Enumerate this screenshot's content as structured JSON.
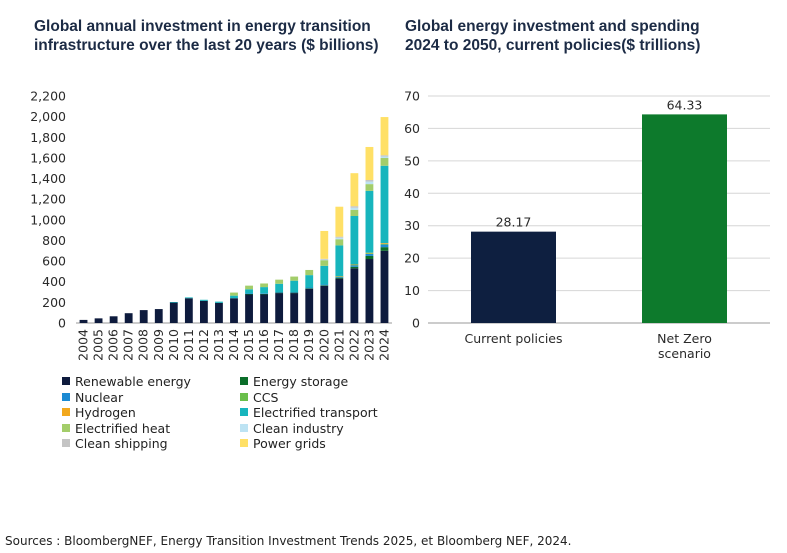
{
  "footer": {
    "sources": "Sources : BloombergNEF, Energy Transition Investment Trends 2025, et Bloomberg NEF, 2024."
  },
  "chart_data": [
    {
      "type": "bar",
      "stacked": true,
      "title": "Global annual investment in energy transition\ninfrastructure over the last 20 years ($ billions)",
      "xlabel": "",
      "ylabel": "",
      "ylim": [
        0,
        2200
      ],
      "yticks": [
        "0",
        "200",
        "400",
        "600",
        "800",
        "1,000",
        "1,200",
        "1,400",
        "1,600",
        "1,800",
        "2,000",
        "2,200"
      ],
      "categories": [
        "2004",
        "2005",
        "2006",
        "2007",
        "2008",
        "2009",
        "2010",
        "2011",
        "2012",
        "2013",
        "2014",
        "2015",
        "2016",
        "2017",
        "2018",
        "2019",
        "2020",
        "2021",
        "2022",
        "2023",
        "2024"
      ],
      "legend_position": "bottom",
      "series": [
        {
          "name": "Renewable energy",
          "color": "#0e1b3d",
          "values": [
            30,
            45,
            65,
            95,
            125,
            135,
            200,
            240,
            215,
            195,
            240,
            280,
            280,
            290,
            290,
            330,
            360,
            430,
            530,
            620,
            700
          ]
        },
        {
          "name": "Energy storage",
          "color": "#0b6e2a",
          "values": [
            0,
            0,
            0,
            0,
            0,
            0,
            0,
            0,
            0,
            0,
            0,
            2,
            3,
            5,
            5,
            6,
            6,
            9,
            15,
            30,
            35
          ]
        },
        {
          "name": "Nuclear",
          "color": "#1b8ad3",
          "values": [
            0,
            0,
            0,
            0,
            0,
            0,
            0,
            0,
            0,
            0,
            0,
            5,
            5,
            5,
            5,
            8,
            8,
            10,
            15,
            20,
            25
          ]
        },
        {
          "name": "CCS",
          "color": "#6abf4b",
          "values": [
            0,
            0,
            0,
            0,
            0,
            0,
            0,
            0,
            0,
            0,
            0,
            0,
            0,
            0,
            0,
            0,
            0,
            2,
            5,
            5,
            6
          ]
        },
        {
          "name": "Hydrogen",
          "color": "#f2a81d",
          "values": [
            0,
            0,
            0,
            0,
            0,
            0,
            0,
            0,
            0,
            0,
            0,
            0,
            0,
            0,
            0,
            0,
            0,
            1,
            2,
            6,
            8
          ]
        },
        {
          "name": "Electrified transport",
          "color": "#17b5bd",
          "values": [
            0,
            0,
            0,
            0,
            0,
            0,
            3,
            8,
            10,
            12,
            25,
            40,
            60,
            80,
            110,
            120,
            180,
            300,
            470,
            600,
            750
          ]
        },
        {
          "name": "Electrified heat",
          "color": "#a3cd6a",
          "values": [
            0,
            0,
            0,
            0,
            0,
            0,
            0,
            0,
            0,
            0,
            30,
            35,
            35,
            40,
            40,
            50,
            55,
            60,
            60,
            65,
            75
          ]
        },
        {
          "name": "Clean industry",
          "color": "#bde3f3",
          "values": [
            0,
            0,
            0,
            0,
            0,
            0,
            0,
            0,
            0,
            0,
            0,
            0,
            0,
            0,
            0,
            0,
            5,
            15,
            20,
            25,
            15
          ]
        },
        {
          "name": "Clean shipping",
          "color": "#c4c4c4",
          "values": [
            0,
            0,
            0,
            0,
            0,
            0,
            0,
            0,
            0,
            0,
            0,
            0,
            0,
            0,
            0,
            0,
            8,
            10,
            15,
            15,
            12
          ]
        },
        {
          "name": "Power grids",
          "color": "#ffe066",
          "values": [
            0,
            0,
            0,
            0,
            0,
            0,
            0,
            0,
            0,
            0,
            0,
            0,
            0,
            0,
            0,
            0,
            270,
            290,
            320,
            320,
            370
          ]
        }
      ]
    },
    {
      "type": "bar",
      "title": "Global energy investment and spending\n2024 to 2050, current policies($ trillions)",
      "xlabel": "",
      "ylabel": "",
      "ylim": [
        0,
        70
      ],
      "yticks": [
        "0",
        "10",
        "20",
        "30",
        "40",
        "50",
        "60",
        "70"
      ],
      "grid": true,
      "categories": [
        "Current policies",
        "Net Zero\nscenario"
      ],
      "values": [
        28.17,
        64.33
      ],
      "data_labels": [
        "28.17",
        "64.33"
      ],
      "colors": [
        "#0e1f40",
        "#0d7a2c"
      ]
    }
  ]
}
